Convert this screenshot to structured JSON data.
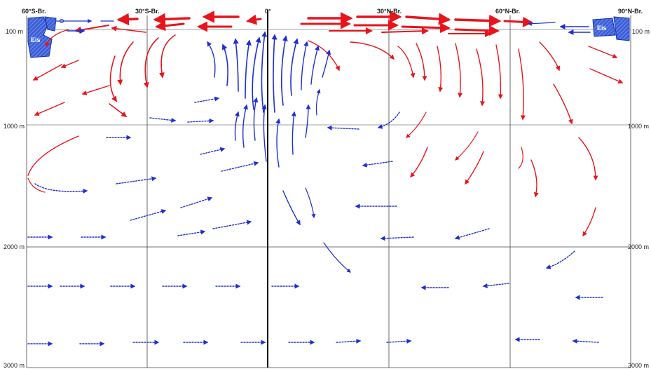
{
  "latitude_labels": {
    "s60": "60°S-Br.",
    "s30": "30°S-Br.",
    "eq": "0°",
    "n30": "30°N-Br.",
    "n60": "60°N-Br.",
    "n90": "90°N-Br."
  },
  "depth_labels": {
    "d100": "100 m",
    "d1000": "1000 m",
    "d2000": "2000 m",
    "d3000": "3000 m"
  },
  "ice_label": "Eis",
  "colors": {
    "warm_current": "#e8141c",
    "cold_current": "#1f2fd0",
    "grid": "#444444",
    "ice_fill": "#3c5fd8"
  }
}
